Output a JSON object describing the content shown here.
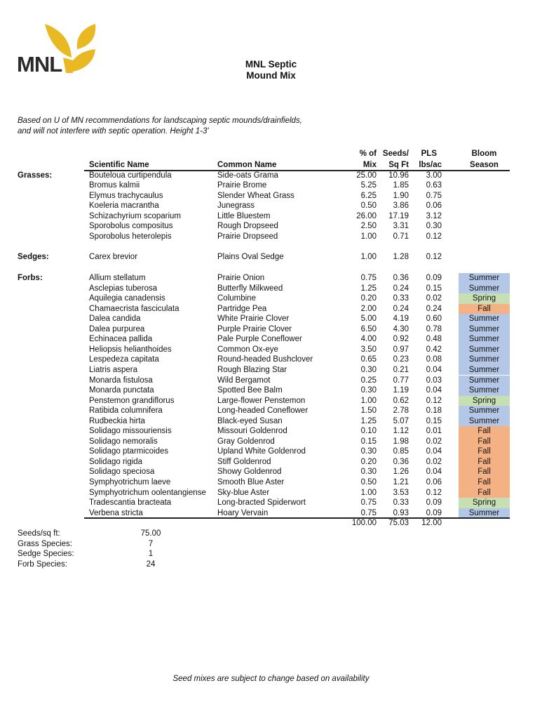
{
  "logo": {
    "text": "MNL",
    "color": "#e8b923",
    "text_color": "#2b2b2b"
  },
  "title": {
    "line1": "MNL Septic",
    "line2": "Mound Mix"
  },
  "intro": {
    "line1": "Based on U of MN recommendations for landscaping septic mounds/drainfields,",
    "line2": "and will not interfere with septic operation.  Height 1-3'"
  },
  "headers": {
    "scientific": "Scientific Name",
    "common": "Common Name",
    "pct_top": "% of",
    "pct_bottom": "Mix",
    "seeds_top": "Seeds/",
    "seeds_bottom": "Sq Ft",
    "pls_top": "PLS",
    "pls_bottom": "lbs/ac",
    "bloom_top": "Bloom",
    "bloom_bottom": "Season"
  },
  "season_colors": {
    "Summer": "#b4c7e7",
    "Spring": "#c6e0b4",
    "Fall": "#f4b183"
  },
  "groups": [
    {
      "label": "Grasses:",
      "rows": [
        [
          "Bouteloua curtipendula",
          "Side-oats Grama",
          "25.00",
          "10.96",
          "3.00",
          ""
        ],
        [
          "Bromus kalmii",
          "Prairie Brome",
          "5.25",
          "1.85",
          "0.63",
          ""
        ],
        [
          "Elymus trachycaulus",
          "Slender Wheat Grass",
          "6.25",
          "1.90",
          "0.75",
          ""
        ],
        [
          "Koeleria macrantha",
          "Junegrass",
          "0.50",
          "3.86",
          "0.06",
          ""
        ],
        [
          "Schizachyrium scoparium",
          "Little Bluestem",
          "26.00",
          "17.19",
          "3.12",
          ""
        ],
        [
          "Sporobolus compositus",
          "Rough Dropseed",
          "2.50",
          "3.31",
          "0.30",
          ""
        ],
        [
          "Sporobolus heterolepis",
          "Prairie Dropseed",
          "1.00",
          "0.71",
          "0.12",
          ""
        ]
      ]
    },
    {
      "label": "Sedges:",
      "rows": [
        [
          "Carex brevior",
          "Plains Oval Sedge",
          "1.00",
          "1.28",
          "0.12",
          ""
        ]
      ]
    },
    {
      "label": "Forbs:",
      "rows": [
        [
          "Allium stellatum",
          "Prairie Onion",
          "0.75",
          "0.36",
          "0.09",
          "Summer"
        ],
        [
          "Asclepias tuberosa",
          "Butterfly Milkweed",
          "1.25",
          "0.24",
          "0.15",
          "Summer"
        ],
        [
          "Aquilegia canadensis",
          "Columbine",
          "0.20",
          "0.33",
          "0.02",
          "Spring"
        ],
        [
          "Chamaecrista fasciculata",
          "Partridge Pea",
          "2.00",
          "0.24",
          "0.24",
          "Fall"
        ],
        [
          "Dalea candida",
          "White Prairie Clover",
          "5.00",
          "4.19",
          "0.60",
          "Summer"
        ],
        [
          "Dalea purpurea",
          "Purple Prairie Clover",
          "6.50",
          "4.30",
          "0.78",
          "Summer"
        ],
        [
          "Echinacea pallida",
          "Pale Purple Coneflower",
          "4.00",
          "0.92",
          "0.48",
          "Summer"
        ],
        [
          "Heliopsis helianthoides",
          "Common Ox-eye",
          "3.50",
          "0.97",
          "0.42",
          "Summer"
        ],
        [
          "Lespedeza capitata",
          "Round-headed Bushclover",
          "0.65",
          "0.23",
          "0.08",
          "Summer"
        ],
        [
          "Liatris aspera",
          "Rough Blazing Star",
          "0.30",
          "0.21",
          "0.04",
          "Summer"
        ],
        [
          "Monarda fistulosa",
          "Wild Bergamot",
          "0.25",
          "0.77",
          "0.03",
          "Summer"
        ],
        [
          "Monarda punctata",
          "Spotted Bee Balm",
          "0.30",
          "1.19",
          "0.04",
          "Summer"
        ],
        [
          "Penstemon grandiflorus",
          "Large-flower Penstemon",
          "1.00",
          "0.62",
          "0.12",
          "Spring"
        ],
        [
          "Ratibida columnifera",
          "Long-headed Coneflower",
          "1.50",
          "2.78",
          "0.18",
          "Summer"
        ],
        [
          "Rudbeckia hirta",
          "Black-eyed Susan",
          "1.25",
          "5.07",
          "0.15",
          "Summer"
        ],
        [
          "Solidago missouriensis",
          "Missouri Goldenrod",
          "0.10",
          "1.12",
          "0.01",
          "Fall"
        ],
        [
          "Solidago nemoralis",
          "Gray Goldenrod",
          "0.15",
          "1.98",
          "0.02",
          "Fall"
        ],
        [
          "Solidago ptarmicoides",
          "Upland White Goldenrod",
          "0.30",
          "0.85",
          "0.04",
          "Fall"
        ],
        [
          "Solidago rigida",
          "Stiff Goldenrod",
          "0.20",
          "0.36",
          "0.02",
          "Fall"
        ],
        [
          "Solidago speciosa",
          "Showy Goldenrod",
          "0.30",
          "1.26",
          "0.04",
          "Fall"
        ],
        [
          "Symphyotrichum laeve",
          "Smooth Blue Aster",
          "0.50",
          "1.21",
          "0.06",
          "Fall"
        ],
        [
          "Symphyotrichum oolentangiense",
          "Sky-blue Aster",
          "1.00",
          "3.53",
          "0.12",
          "Fall"
        ],
        [
          "Tradescantia bracteata",
          "Long-bracted Spiderwort",
          "0.75",
          "0.33",
          "0.09",
          "Spring"
        ],
        [
          "Verbena stricta",
          "Hoary Vervain",
          "0.75",
          "0.93",
          "0.09",
          "Summer"
        ]
      ]
    }
  ],
  "totals": {
    "pct": "100.00",
    "seeds": "75.03",
    "pls": "12.00"
  },
  "summary": [
    {
      "label": "Seeds/sq ft:",
      "value": "75.00"
    },
    {
      "label": "Grass Species:",
      "value": "7"
    },
    {
      "label": "Sedge Species:",
      "value": "1"
    },
    {
      "label": "Forb Species:",
      "value": "24"
    }
  ],
  "footer": "Seed mixes are subject to change based on availability"
}
